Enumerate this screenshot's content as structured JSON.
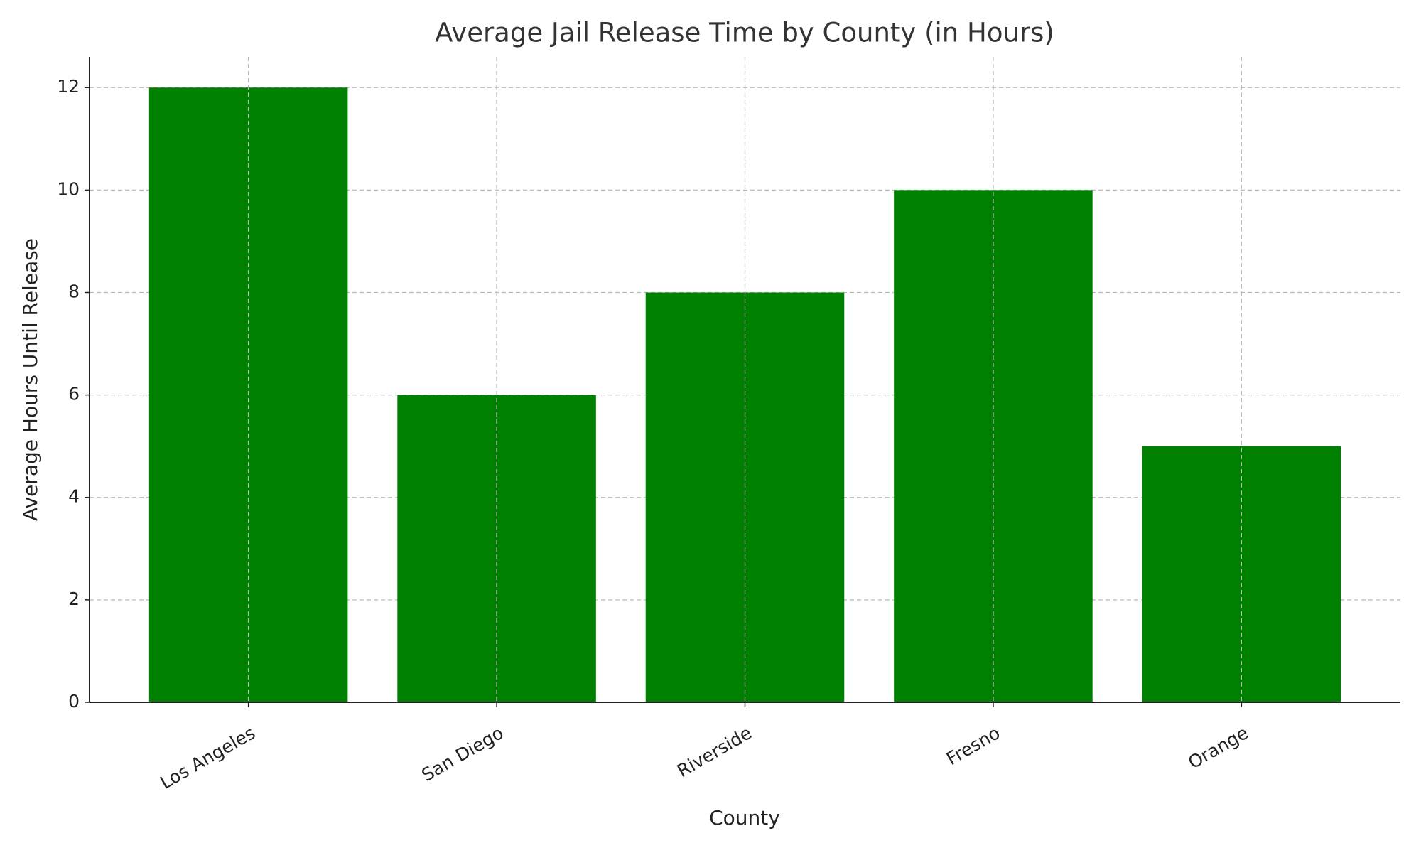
{
  "chart_data": {
    "type": "bar",
    "title": "Average Jail Release Time by County (in Hours)",
    "x_label": "County",
    "y_label": "Average Hours Until Release",
    "categories": [
      "Los Angeles",
      "San Diego",
      "Riverside",
      "Fresno",
      "Orange"
    ],
    "values": [
      12,
      6,
      8,
      10,
      5
    ],
    "color": "#008000",
    "ylim": [
      0,
      12.6
    ],
    "yticks": [
      0,
      2,
      4,
      6,
      8,
      10,
      12
    ],
    "grid": true
  }
}
